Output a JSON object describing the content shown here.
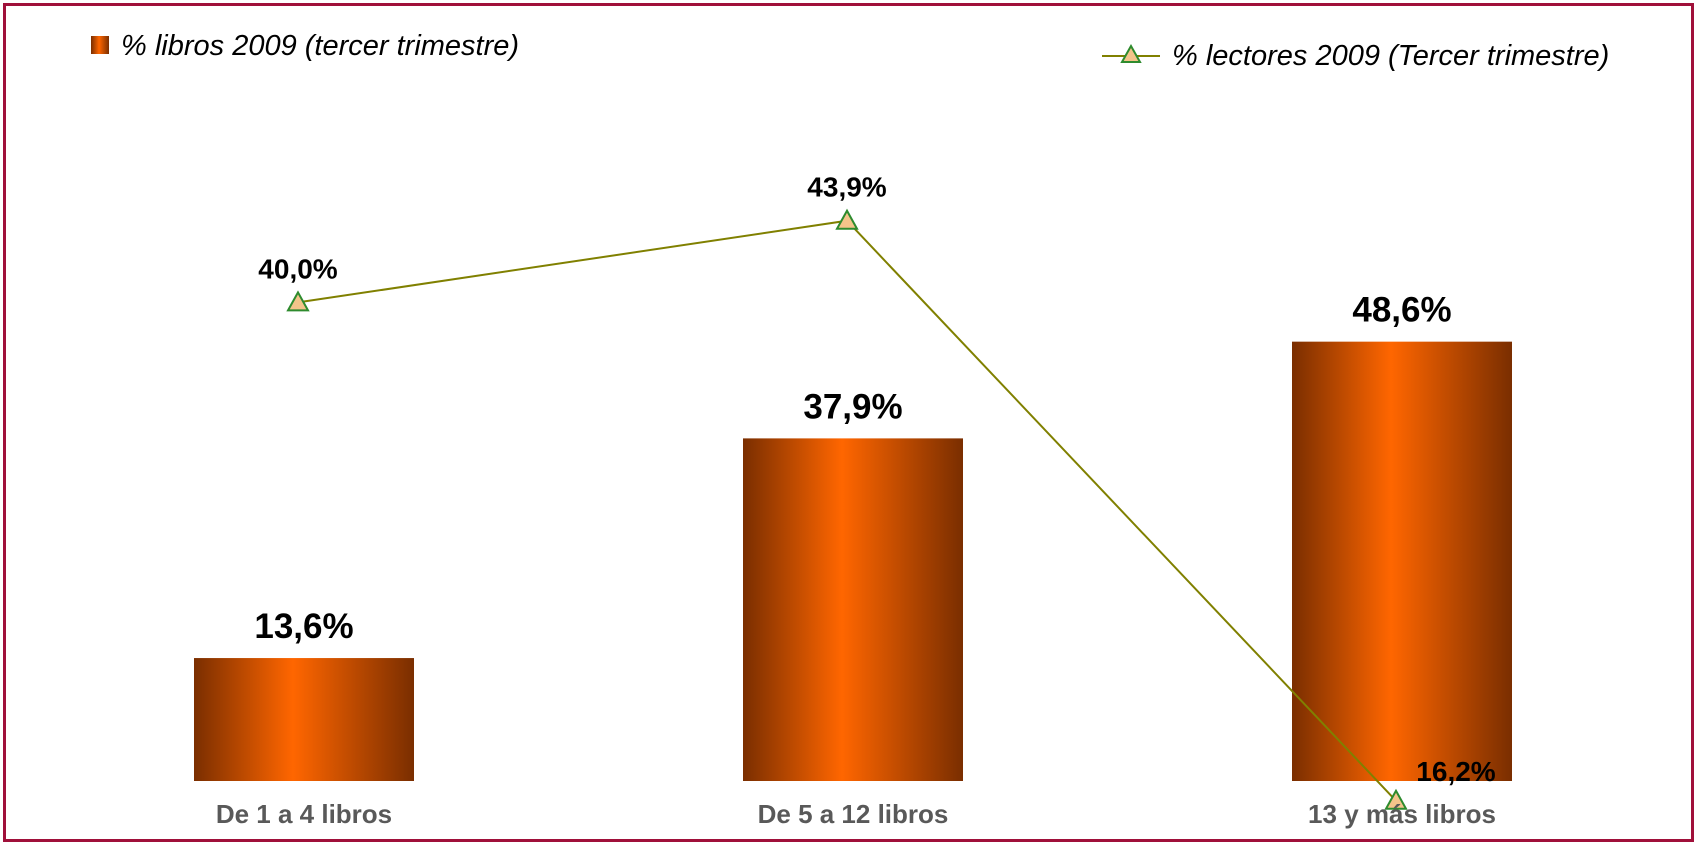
{
  "chart_data": {
    "type": "bar",
    "categories": [
      "De 1 a 4 libros",
      "De 5 a 12 libros",
      "13 y más libros"
    ],
    "series": [
      {
        "name": "% libros 2009 (tercer trimestre)",
        "kind": "bar",
        "values": [
          13.6,
          37.9,
          48.6
        ],
        "labels": [
          "13,6%",
          "37,9%",
          "48,6%"
        ],
        "color": "#FF6600"
      },
      {
        "name": "% lectores 2009 (Tercer trimestre)",
        "kind": "line",
        "marker": "triangle",
        "values": [
          40.0,
          43.9,
          16.2
        ],
        "labels": [
          "40,0%",
          "43,9%",
          "16,2%"
        ],
        "color": "#808000",
        "marker_fill": "#F4C48A",
        "marker_stroke": "#2E8B2E"
      }
    ],
    "title": "",
    "xlabel": "",
    "ylabel": "",
    "ylim": [
      0,
      60
    ],
    "grid": false,
    "legend_placement": "top",
    "frame_color": "#A0103A",
    "bar_gradient": [
      "#7A2E00",
      "#FF6600",
      "#7A2E00"
    ]
  }
}
